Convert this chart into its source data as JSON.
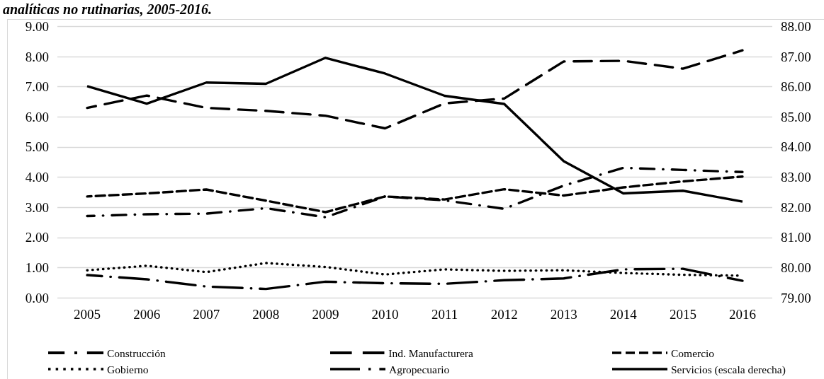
{
  "chart_data": {
    "type": "line",
    "title": "analíticas no rutinarias, 2005-2016.",
    "categories": [
      "2005",
      "2006",
      "2007",
      "2008",
      "2009",
      "2010",
      "2011",
      "2012",
      "2013",
      "2014",
      "2015",
      "2016"
    ],
    "series": [
      {
        "name": "Construcción",
        "color": "#000000",
        "line_style": "dashdot",
        "values": [
          2.71,
          2.77,
          2.79,
          2.97,
          2.67,
          3.36,
          3.23,
          2.95,
          3.72,
          4.31,
          4.24,
          4.17
        ]
      },
      {
        "name": "Ind. Manufacturera",
        "color": "#000000",
        "line_style": "longdash",
        "values": [
          6.3,
          6.71,
          6.3,
          6.2,
          6.04,
          5.62,
          6.45,
          6.61,
          7.84,
          7.86,
          7.6,
          8.21
        ]
      },
      {
        "name": "Comercio",
        "color": "#000000",
        "line_style": "dashed",
        "values": [
          3.36,
          3.46,
          3.59,
          3.22,
          2.84,
          3.36,
          3.26,
          3.6,
          3.39,
          3.66,
          3.86,
          4.02
        ]
      },
      {
        "name": "Gobierno",
        "color": "#000000",
        "line_style": "dotted",
        "values": [
          0.91,
          1.06,
          0.85,
          1.15,
          1.02,
          0.77,
          0.94,
          0.89,
          0.91,
          0.82,
          0.76,
          0.73
        ]
      },
      {
        "name": "Agropecuario",
        "color": "#000000",
        "line_style": "longdashdot",
        "values": [
          0.75,
          0.61,
          0.37,
          0.29,
          0.53,
          0.48,
          0.46,
          0.58,
          0.64,
          0.94,
          0.96,
          0.56
        ]
      },
      {
        "name": "Servicios (escala derecha)",
        "color": "#000000",
        "line_style": "solid",
        "axis": "y2",
        "values": [
          86.02,
          85.44,
          86.14,
          86.1,
          86.96,
          86.44,
          85.7,
          85.43,
          83.53,
          82.46,
          82.55,
          82.19
        ]
      }
    ],
    "ylim": [
      0,
      9
    ],
    "yticks": [
      {
        "value": 0,
        "label": "0.00"
      },
      {
        "value": 1,
        "label": "1.00"
      },
      {
        "value": 2,
        "label": "2.00"
      },
      {
        "value": 3,
        "label": "3.00"
      },
      {
        "value": 4,
        "label": "4.00"
      },
      {
        "value": 5,
        "label": "5.00"
      },
      {
        "value": 6,
        "label": "6.00"
      },
      {
        "value": 7,
        "label": "7.00"
      },
      {
        "value": 8,
        "label": "8.00"
      },
      {
        "value": 9,
        "label": "9.00"
      }
    ],
    "y2lim": [
      79,
      88
    ],
    "y2ticks": [
      {
        "value": 79,
        "label": "79.00"
      },
      {
        "value": 80,
        "label": "80.00"
      },
      {
        "value": 81,
        "label": "81.00"
      },
      {
        "value": 82,
        "label": "82.00"
      },
      {
        "value": 83,
        "label": "83.00"
      },
      {
        "value": 84,
        "label": "84.00"
      },
      {
        "value": 85,
        "label": "85.00"
      },
      {
        "value": 86,
        "label": "86.00"
      },
      {
        "value": 87,
        "label": "87.00"
      },
      {
        "value": 88,
        "label": "88.00"
      }
    ],
    "grid": "y",
    "legend": "bottom",
    "marker": "none"
  }
}
